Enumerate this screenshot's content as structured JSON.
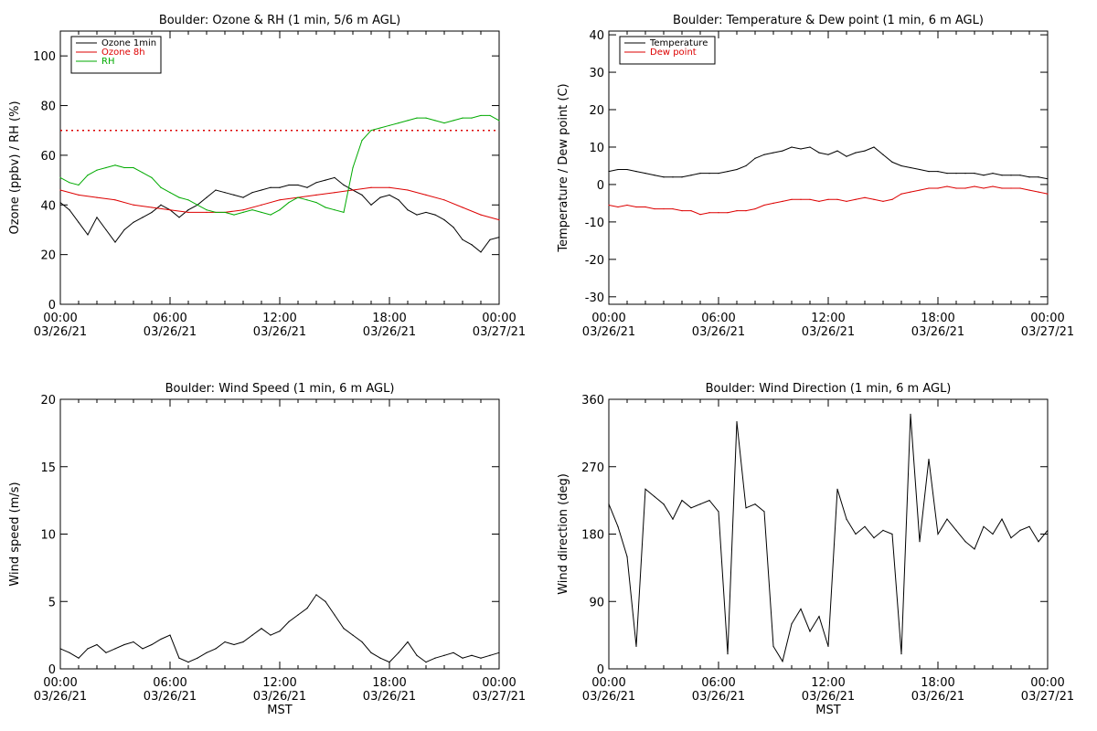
{
  "chart_data": [
    {
      "type": "line",
      "title": "Boulder: Ozone & RH (1 min, 5/6 m AGL)",
      "xlabel": "",
      "ylabel": "Ozone (ppbv) / RH (%)",
      "xlim": [
        "03/26/21 00:00",
        "03/27/21 00:00"
      ],
      "ylim": [
        0,
        110
      ],
      "yticks": [
        0,
        20,
        40,
        60,
        80,
        100
      ],
      "xtick_labels": [
        [
          "00:00",
          "03/26/21"
        ],
        [
          "06:00",
          "03/26/21"
        ],
        [
          "12:00",
          "03/26/21"
        ],
        [
          "18:00",
          "03/26/21"
        ],
        [
          "00:00",
          "03/27/21"
        ]
      ],
      "grid": false,
      "legend": "top-left",
      "reference_lines": [
        {
          "y": 70,
          "color": "#dd0000",
          "style": "dotted"
        }
      ],
      "series": [
        {
          "name": "Ozone 1min",
          "color": "#000000",
          "x": [
            "03/26/21 00:00",
            "03/26/21 00:30",
            "03/26/21 01:00",
            "03/26/21 01:30",
            "03/26/21 02:00",
            "03/26/21 02:30",
            "03/26/21 03:00",
            "03/26/21 03:30",
            "03/26/21 04:00",
            "03/26/21 04:30",
            "03/26/21 05:00",
            "03/26/21 05:30",
            "03/26/21 06:00",
            "03/26/21 06:30",
            "03/26/21 07:00",
            "03/26/21 07:30",
            "03/26/21 08:00",
            "03/26/21 08:30",
            "03/26/21 09:00",
            "03/26/21 09:30",
            "03/26/21 10:00",
            "03/26/21 10:30",
            "03/26/21 11:00",
            "03/26/21 11:30",
            "03/26/21 12:00",
            "03/26/21 12:30",
            "03/26/21 13:00",
            "03/26/21 13:30",
            "03/26/21 14:00",
            "03/26/21 14:30",
            "03/26/21 15:00",
            "03/26/21 15:30",
            "03/26/21 16:00",
            "03/26/21 16:30",
            "03/26/21 17:00",
            "03/26/21 17:30",
            "03/26/21 18:00",
            "03/26/21 18:30",
            "03/26/21 19:00",
            "03/26/21 19:30",
            "03/26/21 20:00",
            "03/26/21 20:30",
            "03/26/21 21:00",
            "03/26/21 21:30",
            "03/26/21 22:00",
            "03/26/21 22:30",
            "03/26/21 23:00",
            "03/26/21 23:30",
            "03/27/21 00:00"
          ],
          "values": [
            41,
            38,
            33,
            28,
            35,
            30,
            25,
            30,
            33,
            35,
            37,
            40,
            38,
            35,
            38,
            40,
            43,
            46,
            45,
            44,
            43,
            45,
            46,
            47,
            47,
            48,
            48,
            47,
            49,
            50,
            51,
            48,
            46,
            44,
            40,
            43,
            44,
            42,
            38,
            36,
            37,
            36,
            34,
            31,
            26,
            24,
            21,
            26,
            27
          ]
        },
        {
          "name": "Ozone 8h",
          "color": "#dd0000",
          "x": [
            "03/26/21 00:00",
            "03/26/21 01:00",
            "03/26/21 02:00",
            "03/26/21 03:00",
            "03/26/21 04:00",
            "03/26/21 05:00",
            "03/26/21 06:00",
            "03/26/21 07:00",
            "03/26/21 08:00",
            "03/26/21 09:00",
            "03/26/21 10:00",
            "03/26/21 11:00",
            "03/26/21 12:00",
            "03/26/21 13:00",
            "03/26/21 14:00",
            "03/26/21 15:00",
            "03/26/21 16:00",
            "03/26/21 17:00",
            "03/26/21 18:00",
            "03/26/21 19:00",
            "03/26/21 20:00",
            "03/26/21 21:00",
            "03/26/21 22:00",
            "03/26/21 23:00",
            "03/27/21 00:00"
          ],
          "values": [
            46,
            44,
            43,
            42,
            40,
            39,
            38,
            37,
            37,
            37,
            38,
            40,
            42,
            43,
            44,
            45,
            46,
            47,
            47,
            46,
            44,
            42,
            39,
            36,
            34
          ]
        },
        {
          "name": "RH",
          "color": "#00aa00",
          "x": [
            "03/26/21 00:00",
            "03/26/21 00:30",
            "03/26/21 01:00",
            "03/26/21 01:30",
            "03/26/21 02:00",
            "03/26/21 02:30",
            "03/26/21 03:00",
            "03/26/21 03:30",
            "03/26/21 04:00",
            "03/26/21 04:30",
            "03/26/21 05:00",
            "03/26/21 05:30",
            "03/26/21 06:00",
            "03/26/21 06:30",
            "03/26/21 07:00",
            "03/26/21 07:30",
            "03/26/21 08:00",
            "03/26/21 08:30",
            "03/26/21 09:00",
            "03/26/21 09:30",
            "03/26/21 10:00",
            "03/26/21 10:30",
            "03/26/21 11:00",
            "03/26/21 11:30",
            "03/26/21 12:00",
            "03/26/21 12:30",
            "03/26/21 13:00",
            "03/26/21 13:30",
            "03/26/21 14:00",
            "03/26/21 14:30",
            "03/26/21 15:00",
            "03/26/21 15:30",
            "03/26/21 16:00",
            "03/26/21 16:30",
            "03/26/21 17:00",
            "03/26/21 17:30",
            "03/26/21 18:00",
            "03/26/21 18:30",
            "03/26/21 19:00",
            "03/26/21 19:30",
            "03/26/21 20:00",
            "03/26/21 20:30",
            "03/26/21 21:00",
            "03/26/21 21:30",
            "03/26/21 22:00",
            "03/26/21 22:30",
            "03/26/21 23:00",
            "03/26/21 23:30",
            "03/27/21 00:00"
          ],
          "values": [
            51,
            49,
            48,
            52,
            54,
            55,
            56,
            55,
            55,
            53,
            51,
            47,
            45,
            43,
            42,
            40,
            38,
            37,
            37,
            36,
            37,
            38,
            37,
            36,
            38,
            41,
            43,
            42,
            41,
            39,
            38,
            37,
            55,
            66,
            70,
            71,
            72,
            73,
            74,
            75,
            75,
            74,
            73,
            74,
            75,
            75,
            76,
            76,
            74
          ]
        }
      ]
    },
    {
      "type": "line",
      "title": "Boulder: Temperature & Dew point (1 min, 6 m AGL)",
      "xlabel": "",
      "ylabel": "Temperature  / Dew point (C)",
      "xlim": [
        "03/26/21 00:00",
        "03/27/21 00:00"
      ],
      "ylim": [
        -32,
        41
      ],
      "yticks": [
        -30,
        -20,
        -10,
        0,
        10,
        20,
        30,
        40
      ],
      "xtick_labels": [
        [
          "00:00",
          "03/26/21"
        ],
        [
          "06:00",
          "03/26/21"
        ],
        [
          "12:00",
          "03/26/21"
        ],
        [
          "18:00",
          "03/26/21"
        ],
        [
          "00:00",
          "03/27/21"
        ]
      ],
      "grid": false,
      "legend": "top-left",
      "series": [
        {
          "name": "Temperature",
          "color": "#000000",
          "x": [
            "03/26/21 00:00",
            "03/26/21 00:30",
            "03/26/21 01:00",
            "03/26/21 01:30",
            "03/26/21 02:00",
            "03/26/21 02:30",
            "03/26/21 03:00",
            "03/26/21 03:30",
            "03/26/21 04:00",
            "03/26/21 04:30",
            "03/26/21 05:00",
            "03/26/21 05:30",
            "03/26/21 06:00",
            "03/26/21 06:30",
            "03/26/21 07:00",
            "03/26/21 07:30",
            "03/26/21 08:00",
            "03/26/21 08:30",
            "03/26/21 09:00",
            "03/26/21 09:30",
            "03/26/21 10:00",
            "03/26/21 10:30",
            "03/26/21 11:00",
            "03/26/21 11:30",
            "03/26/21 12:00",
            "03/26/21 12:30",
            "03/26/21 13:00",
            "03/26/21 13:30",
            "03/26/21 14:00",
            "03/26/21 14:30",
            "03/26/21 15:00",
            "03/26/21 15:30",
            "03/26/21 16:00",
            "03/26/21 16:30",
            "03/26/21 17:00",
            "03/26/21 17:30",
            "03/26/21 18:00",
            "03/26/21 18:30",
            "03/26/21 19:00",
            "03/26/21 19:30",
            "03/26/21 20:00",
            "03/26/21 20:30",
            "03/26/21 21:00",
            "03/26/21 21:30",
            "03/26/21 22:00",
            "03/26/21 22:30",
            "03/26/21 23:00",
            "03/26/21 23:30",
            "03/27/21 00:00"
          ],
          "values": [
            3.5,
            4,
            4,
            3.5,
            3,
            2.5,
            2,
            2,
            2,
            2.5,
            3,
            3,
            3,
            3.5,
            4,
            5,
            7,
            8,
            8.5,
            9,
            10,
            9.5,
            10,
            8.5,
            8,
            9,
            7.5,
            8.5,
            9,
            10,
            8,
            6,
            5,
            4.5,
            4,
            3.5,
            3.5,
            3,
            3,
            3,
            3,
            2.5,
            3,
            2.5,
            2.5,
            2.5,
            2,
            2,
            1.5
          ]
        },
        {
          "name": "Dew point",
          "color": "#dd0000",
          "x": [
            "03/26/21 00:00",
            "03/26/21 00:30",
            "03/26/21 01:00",
            "03/26/21 01:30",
            "03/26/21 02:00",
            "03/26/21 02:30",
            "03/26/21 03:00",
            "03/26/21 03:30",
            "03/26/21 04:00",
            "03/26/21 04:30",
            "03/26/21 05:00",
            "03/26/21 05:30",
            "03/26/21 06:00",
            "03/26/21 06:30",
            "03/26/21 07:00",
            "03/26/21 07:30",
            "03/26/21 08:00",
            "03/26/21 08:30",
            "03/26/21 09:00",
            "03/26/21 09:30",
            "03/26/21 10:00",
            "03/26/21 10:30",
            "03/26/21 11:00",
            "03/26/21 11:30",
            "03/26/21 12:00",
            "03/26/21 12:30",
            "03/26/21 13:00",
            "03/26/21 13:30",
            "03/26/21 14:00",
            "03/26/21 14:30",
            "03/26/21 15:00",
            "03/26/21 15:30",
            "03/26/21 16:00",
            "03/26/21 16:30",
            "03/26/21 17:00",
            "03/26/21 17:30",
            "03/26/21 18:00",
            "03/26/21 18:30",
            "03/26/21 19:00",
            "03/26/21 19:30",
            "03/26/21 20:00",
            "03/26/21 20:30",
            "03/26/21 21:00",
            "03/26/21 21:30",
            "03/26/21 22:00",
            "03/26/21 22:30",
            "03/26/21 23:00",
            "03/26/21 23:30",
            "03/27/21 00:00"
          ],
          "values": [
            -5.5,
            -6,
            -5.5,
            -6,
            -6,
            -6.5,
            -6.5,
            -6.5,
            -7,
            -7,
            -8,
            -7.5,
            -7.5,
            -7.5,
            -7,
            -7,
            -6.5,
            -5.5,
            -5,
            -4.5,
            -4,
            -4,
            -4,
            -4.5,
            -4,
            -4,
            -4.5,
            -4,
            -3.5,
            -4,
            -4.5,
            -4,
            -2.5,
            -2,
            -1.5,
            -1,
            -1,
            -0.5,
            -1,
            -1,
            -0.5,
            -1,
            -0.5,
            -1,
            -1,
            -1,
            -1.5,
            -2,
            -2.5
          ]
        }
      ]
    },
    {
      "type": "line",
      "title": "Boulder: Wind Speed (1 min, 6 m AGL)",
      "xlabel": "MST",
      "ylabel": "Wind speed (m/s)",
      "xlim": [
        "03/26/21 00:00",
        "03/27/21 00:00"
      ],
      "ylim": [
        0,
        20
      ],
      "yticks": [
        0,
        5,
        10,
        15,
        20
      ],
      "xtick_labels": [
        [
          "00:00",
          "03/26/21"
        ],
        [
          "06:00",
          "03/26/21"
        ],
        [
          "12:00",
          "03/26/21"
        ],
        [
          "18:00",
          "03/26/21"
        ],
        [
          "00:00",
          "03/27/21"
        ]
      ],
      "grid": false,
      "series": [
        {
          "name": "",
          "color": "#000000",
          "x": [
            "03/26/21 00:00",
            "03/26/21 00:30",
            "03/26/21 01:00",
            "03/26/21 01:30",
            "03/26/21 02:00",
            "03/26/21 02:30",
            "03/26/21 03:00",
            "03/26/21 03:30",
            "03/26/21 04:00",
            "03/26/21 04:30",
            "03/26/21 05:00",
            "03/26/21 05:30",
            "03/26/21 06:00",
            "03/26/21 06:30",
            "03/26/21 07:00",
            "03/26/21 07:30",
            "03/26/21 08:00",
            "03/26/21 08:30",
            "03/26/21 09:00",
            "03/26/21 09:30",
            "03/26/21 10:00",
            "03/26/21 10:30",
            "03/26/21 11:00",
            "03/26/21 11:30",
            "03/26/21 12:00",
            "03/26/21 12:30",
            "03/26/21 13:00",
            "03/26/21 13:30",
            "03/26/21 14:00",
            "03/26/21 14:30",
            "03/26/21 15:00",
            "03/26/21 15:30",
            "03/26/21 16:00",
            "03/26/21 16:30",
            "03/26/21 17:00",
            "03/26/21 17:30",
            "03/26/21 18:00",
            "03/26/21 18:30",
            "03/26/21 19:00",
            "03/26/21 19:30",
            "03/26/21 20:00",
            "03/26/21 20:30",
            "03/26/21 21:00",
            "03/26/21 21:30",
            "03/26/21 22:00",
            "03/26/21 22:30",
            "03/26/21 23:00",
            "03/26/21 23:30",
            "03/27/21 00:00"
          ],
          "values": [
            1.5,
            1.2,
            0.8,
            1.5,
            1.8,
            1.2,
            1.5,
            1.8,
            2.0,
            1.5,
            1.8,
            2.2,
            2.5,
            0.8,
            0.5,
            0.8,
            1.2,
            1.5,
            2.0,
            1.8,
            2.0,
            2.5,
            3.0,
            2.5,
            2.8,
            3.5,
            4.0,
            4.5,
            5.5,
            5.0,
            4.0,
            3.0,
            2.5,
            2.0,
            1.2,
            0.8,
            0.5,
            1.2,
            2.0,
            1.0,
            0.5,
            0.8,
            1.0,
            1.2,
            0.8,
            1.0,
            0.8,
            1.0,
            1.2
          ]
        }
      ]
    },
    {
      "type": "line",
      "title": "Boulder: Wind Direction (1 min, 6 m AGL)",
      "xlabel": "MST",
      "ylabel": "Wind direction (deg)",
      "xlim": [
        "03/26/21 00:00",
        "03/27/21 00:00"
      ],
      "ylim": [
        0,
        360
      ],
      "yticks": [
        0,
        90,
        180,
        270,
        360
      ],
      "xtick_labels": [
        [
          "00:00",
          "03/26/21"
        ],
        [
          "06:00",
          "03/26/21"
        ],
        [
          "12:00",
          "03/26/21"
        ],
        [
          "18:00",
          "03/26/21"
        ],
        [
          "00:00",
          "03/27/21"
        ]
      ],
      "grid": false,
      "series": [
        {
          "name": "",
          "color": "#000000",
          "x": [
            "03/26/21 00:00",
            "03/26/21 00:30",
            "03/26/21 01:00",
            "03/26/21 01:30",
            "03/26/21 02:00",
            "03/26/21 02:30",
            "03/26/21 03:00",
            "03/26/21 03:30",
            "03/26/21 04:00",
            "03/26/21 04:30",
            "03/26/21 05:00",
            "03/26/21 05:30",
            "03/26/21 06:00",
            "03/26/21 06:30",
            "03/26/21 07:00",
            "03/26/21 07:30",
            "03/26/21 08:00",
            "03/26/21 08:30",
            "03/26/21 09:00",
            "03/26/21 09:30",
            "03/26/21 10:00",
            "03/26/21 10:30",
            "03/26/21 11:00",
            "03/26/21 11:30",
            "03/26/21 12:00",
            "03/26/21 12:30",
            "03/26/21 13:00",
            "03/26/21 13:30",
            "03/26/21 14:00",
            "03/26/21 14:30",
            "03/26/21 15:00",
            "03/26/21 15:30",
            "03/26/21 16:00",
            "03/26/21 16:30",
            "03/26/21 17:00",
            "03/26/21 17:30",
            "03/26/21 18:00",
            "03/26/21 18:30",
            "03/26/21 19:00",
            "03/26/21 19:30",
            "03/26/21 20:00",
            "03/26/21 20:30",
            "03/26/21 21:00",
            "03/26/21 21:30",
            "03/26/21 22:00",
            "03/26/21 22:30",
            "03/26/21 23:00",
            "03/26/21 23:30",
            "03/27/21 00:00"
          ],
          "values": [
            220,
            190,
            150,
            30,
            240,
            230,
            220,
            200,
            225,
            215,
            220,
            225,
            210,
            20,
            330,
            215,
            220,
            210,
            30,
            10,
            60,
            80,
            50,
            70,
            30,
            240,
            200,
            180,
            190,
            175,
            185,
            180,
            20,
            340,
            170,
            280,
            180,
            200,
            185,
            170,
            160,
            190,
            180,
            200,
            175,
            185,
            190,
            170,
            185
          ]
        }
      ]
    }
  ]
}
